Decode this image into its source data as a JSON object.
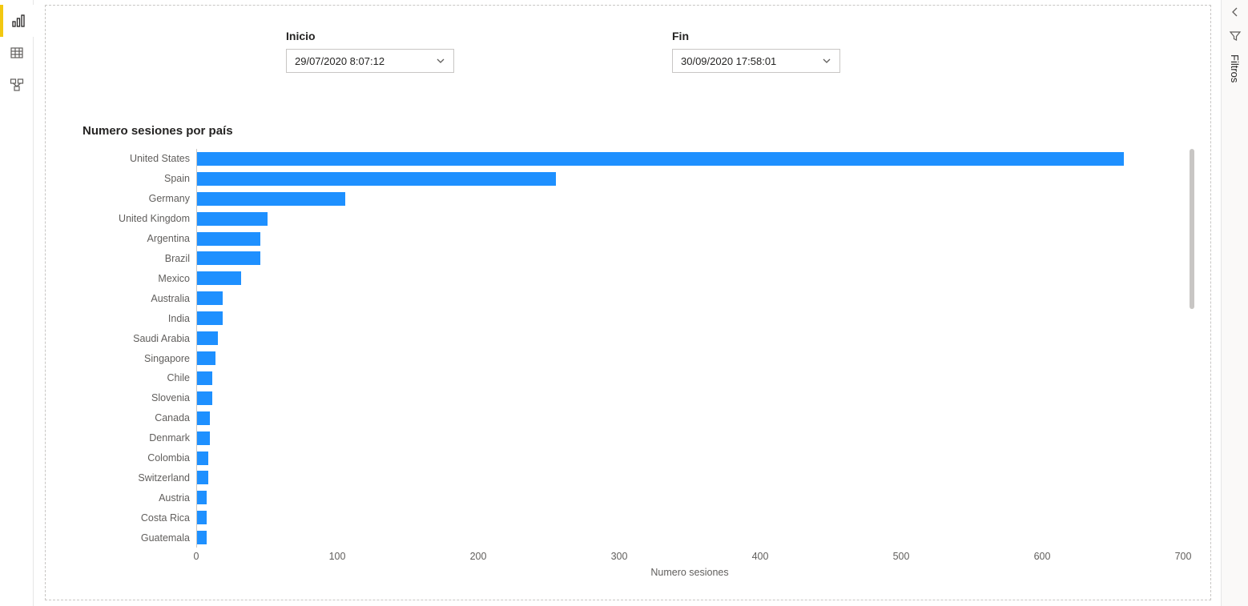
{
  "sidebar": {
    "icons": [
      {
        "name": "report-view-icon",
        "active": true
      },
      {
        "name": "data-view-icon",
        "active": false
      },
      {
        "name": "model-view-icon",
        "active": false
      }
    ]
  },
  "slicers": {
    "inicio": {
      "label": "Inicio",
      "value": "29/07/2020 8:07:12"
    },
    "fin": {
      "label": "Fin",
      "value": "30/09/2020 17:58:01"
    }
  },
  "chart": {
    "type": "bar-horizontal",
    "title": "Numero sesiones por país",
    "x_axis_label": "Numero sesiones",
    "xlim": [
      0,
      700
    ],
    "xticks": [
      0,
      100,
      200,
      300,
      400,
      500,
      600,
      700
    ],
    "bar_color": "#1e90ff",
    "axis_color": "#c8c6c4",
    "label_color": "#605e5c",
    "label_fontsize": 12.5,
    "title_fontsize": 15,
    "background_color": "#ffffff",
    "data": [
      {
        "country": "United States",
        "value": 658
      },
      {
        "country": "Spain",
        "value": 255
      },
      {
        "country": "Germany",
        "value": 105
      },
      {
        "country": "United Kingdom",
        "value": 50
      },
      {
        "country": "Argentina",
        "value": 45
      },
      {
        "country": "Brazil",
        "value": 45
      },
      {
        "country": "Mexico",
        "value": 31
      },
      {
        "country": "Australia",
        "value": 18
      },
      {
        "country": "India",
        "value": 18
      },
      {
        "country": "Saudi Arabia",
        "value": 15
      },
      {
        "country": "Singapore",
        "value": 13
      },
      {
        "country": "Chile",
        "value": 11
      },
      {
        "country": "Slovenia",
        "value": 11
      },
      {
        "country": "Canada",
        "value": 9
      },
      {
        "country": "Denmark",
        "value": 9
      },
      {
        "country": "Colombia",
        "value": 8
      },
      {
        "country": "Switzerland",
        "value": 8
      },
      {
        "country": "Austria",
        "value": 7
      },
      {
        "country": "Costa Rica",
        "value": 7
      },
      {
        "country": "Guatemala",
        "value": 7
      }
    ]
  },
  "right_panel": {
    "label": "Filtros"
  }
}
